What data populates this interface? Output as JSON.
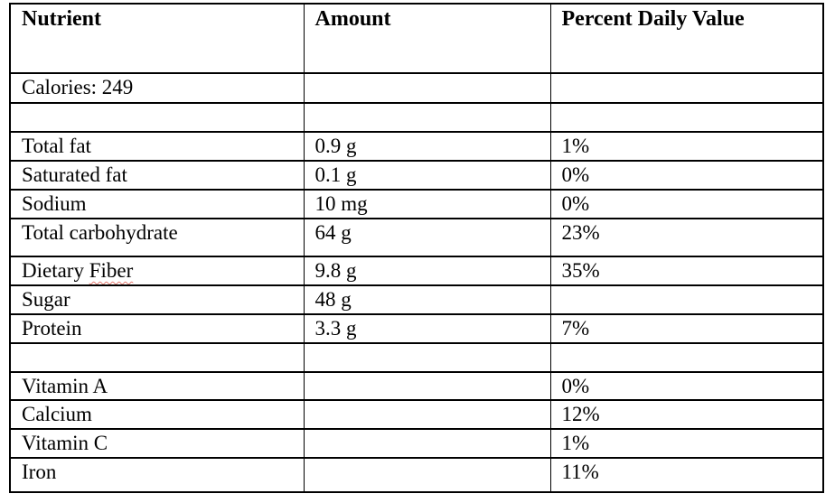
{
  "colors": {
    "background": "#ffffff",
    "text": "#000000",
    "border": "#000000",
    "spellcheck": "#e57a70"
  },
  "table": {
    "columns": [
      {
        "label": "Nutrient"
      },
      {
        "label": "Amount"
      },
      {
        "label": "Percent Daily Value"
      }
    ],
    "rows": [
      {
        "nutrient": "Calories: 249",
        "amount": "",
        "pdv": ""
      },
      {
        "nutrient": "",
        "amount": "",
        "pdv": ""
      },
      {
        "nutrient": "Total fat",
        "amount": "0.9 g",
        "pdv": "1%"
      },
      {
        "nutrient": "Saturated fat",
        "amount": "0.1 g",
        "pdv": "0%"
      },
      {
        "nutrient": "Sodium",
        "amount": "10 mg",
        "pdv": "0%"
      },
      {
        "nutrient": "Total carbohydrate",
        "amount": "64 g",
        "pdv": "23%"
      },
      {
        "nutrient": "Dietary ",
        "nutrient_flagged": "Fiber",
        "amount": "9.8 g",
        "pdv": "35%"
      },
      {
        "nutrient": "Sugar",
        "amount": "48 g",
        "pdv": ""
      },
      {
        "nutrient": "Protein",
        "amount": "3.3 g",
        "pdv": "7%"
      },
      {
        "nutrient": "",
        "amount": "",
        "pdv": ""
      },
      {
        "nutrient": "Vitamin A",
        "amount": "",
        "pdv": "0%"
      },
      {
        "nutrient": "Calcium",
        "amount": "",
        "pdv": "12%"
      },
      {
        "nutrient": "Vitamin C",
        "amount": "",
        "pdv": "1%"
      },
      {
        "nutrient": "Iron",
        "amount": "",
        "pdv": "11%"
      }
    ]
  }
}
